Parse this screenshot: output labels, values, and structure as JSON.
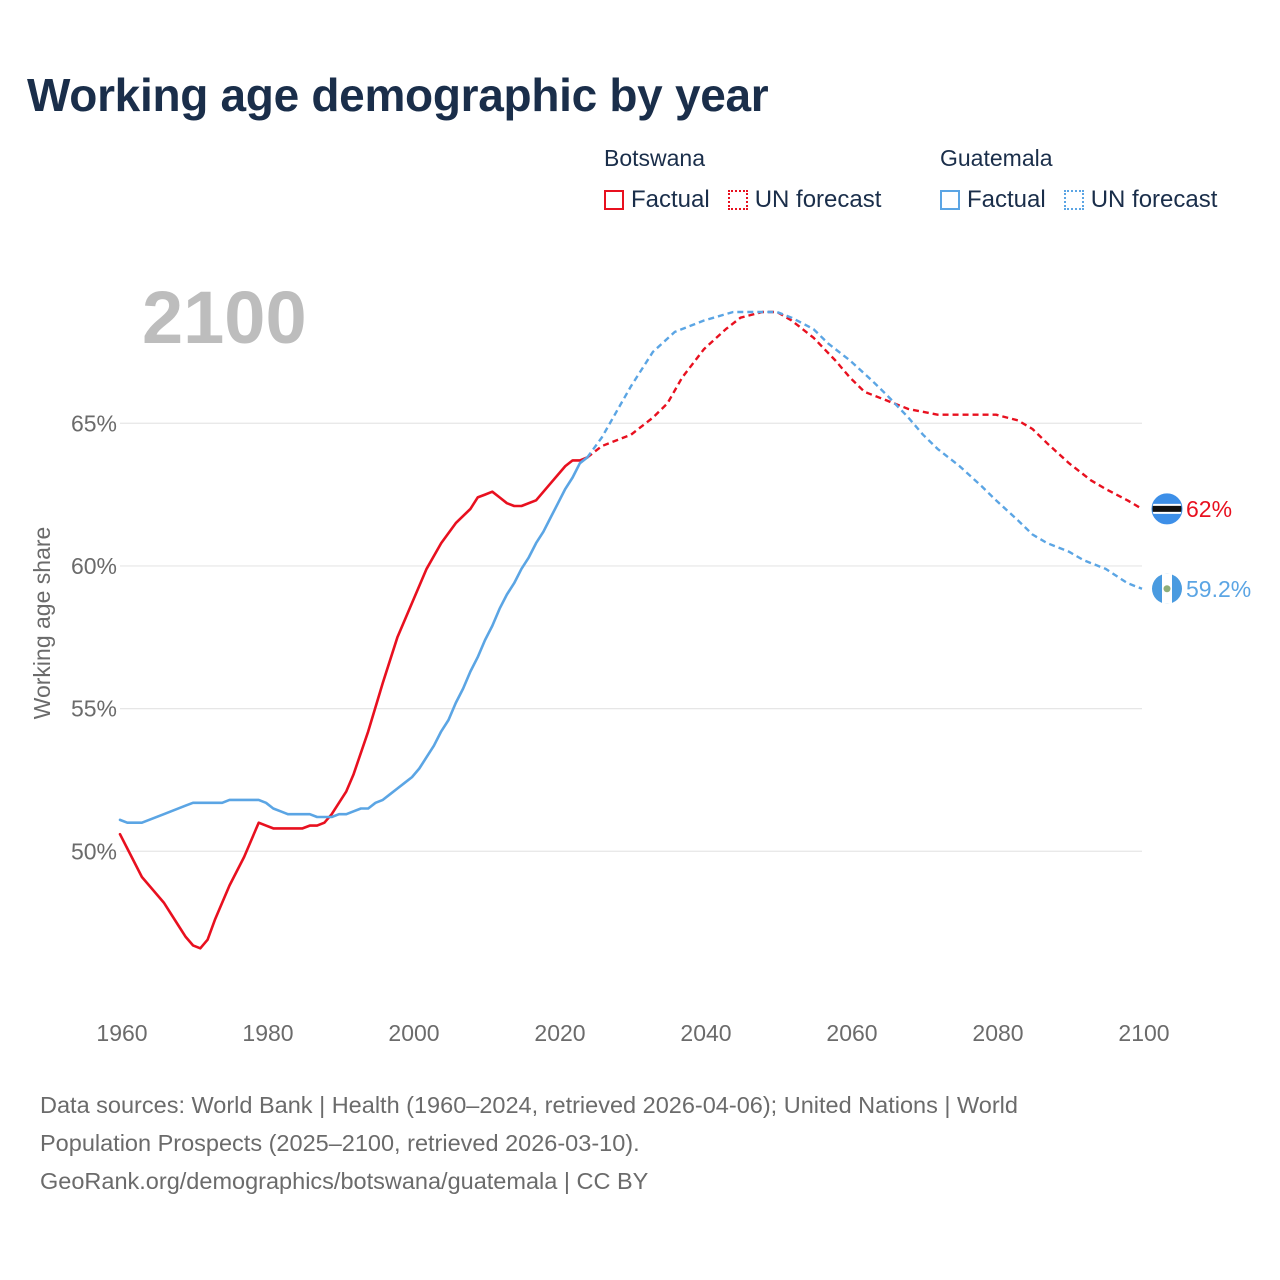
{
  "title": "Working age demographic by year",
  "legend": {
    "groups": [
      {
        "country": "Botswana",
        "factual_label": "Factual",
        "forecast_label": "UN forecast",
        "color": "#e8101f"
      },
      {
        "country": "Guatemala",
        "factual_label": "Factual",
        "forecast_label": "UN forecast",
        "color": "#5ba5e4"
      }
    ]
  },
  "footer": {
    "line1": "Data sources: World Bank | Health (1960–2024, retrieved 2026-04-06); United Nations | World",
    "line2": "Population Prospects (2025–2100, retrieved 2026-03-10).",
    "line3": "GeoRank.org/demographics/botswana/guatemala | CC BY"
  },
  "chart_data": {
    "type": "line",
    "year_label": "2100",
    "ylabel": "Working age share",
    "xlim": [
      1960,
      2100
    ],
    "ylim": [
      46.4,
      69.6
    ],
    "x_ticks": [
      1960,
      1980,
      2000,
      2020,
      2040,
      2060,
      2080,
      2100
    ],
    "y_ticks": [
      {
        "value": 50,
        "label": "50%"
      },
      {
        "value": 55,
        "label": "55%"
      },
      {
        "value": 60,
        "label": "60%"
      },
      {
        "value": 65,
        "label": "65%"
      }
    ],
    "grid": true,
    "series": [
      {
        "name": "Botswana",
        "color": "#e8101f",
        "end_label": "62%",
        "end_value": 62.0,
        "factual": {
          "x": [
            1960,
            1963,
            1966,
            1968,
            1969,
            1970,
            1971,
            1972,
            1973,
            1975,
            1977,
            1979,
            1980,
            1981,
            1983,
            1985,
            1986,
            1987,
            1988,
            1989,
            1990,
            1991,
            1992,
            1994,
            1996,
            1998,
            2000,
            2002,
            2004,
            2006,
            2008,
            2009,
            2010,
            2011,
            2012,
            2013,
            2014,
            2015,
            2017,
            2019,
            2021,
            2022,
            2023,
            2024
          ],
          "y": [
            50.6,
            49.1,
            48.2,
            47.4,
            47.0,
            46.7,
            46.6,
            46.9,
            47.6,
            48.8,
            49.8,
            51.0,
            50.9,
            50.8,
            50.8,
            50.8,
            50.9,
            50.9,
            51.0,
            51.3,
            51.7,
            52.1,
            52.7,
            54.2,
            55.9,
            57.5,
            58.7,
            59.9,
            60.8,
            61.5,
            62.0,
            62.4,
            62.5,
            62.6,
            62.4,
            62.2,
            62.1,
            62.1,
            62.3,
            62.9,
            63.5,
            63.7,
            63.7,
            63.8
          ]
        },
        "forecast": {
          "x": [
            2024,
            2026,
            2030,
            2033,
            2035,
            2037,
            2040,
            2043,
            2045,
            2048,
            2050,
            2052,
            2055,
            2058,
            2060,
            2062,
            2065,
            2068,
            2070,
            2072,
            2075,
            2078,
            2080,
            2083,
            2085,
            2087,
            2090,
            2093,
            2095,
            2098,
            2100
          ],
          "y": [
            63.8,
            64.2,
            64.6,
            65.2,
            65.7,
            66.6,
            67.6,
            68.3,
            68.7,
            68.9,
            68.9,
            68.6,
            68.0,
            67.2,
            66.6,
            66.1,
            65.8,
            65.5,
            65.4,
            65.3,
            65.3,
            65.3,
            65.3,
            65.1,
            64.8,
            64.3,
            63.6,
            63.0,
            62.7,
            62.3,
            62.0
          ]
        }
      },
      {
        "name": "Guatemala",
        "color": "#5ba5e4",
        "end_label": "59.2%",
        "end_value": 59.2,
        "factual": {
          "x": [
            1960,
            1961,
            1963,
            1966,
            1969,
            1970,
            1972,
            1974,
            1975,
            1977,
            1979,
            1980,
            1981,
            1982,
            1983,
            1984,
            1985,
            1986,
            1987,
            1988,
            1989,
            1990,
            1991,
            1992,
            1993,
            1994,
            1995,
            1996,
            1997,
            1998,
            1999,
            2000,
            2001,
            2002,
            2003,
            2004,
            2005,
            2006,
            2007,
            2008,
            2009,
            2010,
            2011,
            2012,
            2013,
            2014,
            2015,
            2016,
            2017,
            2018,
            2019,
            2020,
            2021,
            2022,
            2023,
            2024
          ],
          "y": [
            51.1,
            51.0,
            51.0,
            51.3,
            51.6,
            51.7,
            51.7,
            51.7,
            51.8,
            51.8,
            51.8,
            51.7,
            51.5,
            51.4,
            51.3,
            51.3,
            51.3,
            51.3,
            51.2,
            51.2,
            51.2,
            51.3,
            51.3,
            51.4,
            51.5,
            51.5,
            51.7,
            51.8,
            52.0,
            52.2,
            52.4,
            52.6,
            52.9,
            53.3,
            53.7,
            54.2,
            54.6,
            55.2,
            55.7,
            56.3,
            56.8,
            57.4,
            57.9,
            58.5,
            59.0,
            59.4,
            59.9,
            60.3,
            60.8,
            61.2,
            61.7,
            62.2,
            62.7,
            63.1,
            63.6,
            63.8
          ]
        },
        "forecast": {
          "x": [
            2024,
            2026,
            2028,
            2030,
            2033,
            2036,
            2040,
            2044,
            2046,
            2050,
            2052,
            2055,
            2057,
            2060,
            2063,
            2065,
            2068,
            2070,
            2072,
            2075,
            2078,
            2080,
            2083,
            2085,
            2087,
            2090,
            2092,
            2095,
            2098,
            2100
          ],
          "y": [
            63.8,
            64.5,
            65.4,
            66.3,
            67.5,
            68.2,
            68.6,
            68.9,
            68.9,
            68.9,
            68.7,
            68.3,
            67.8,
            67.2,
            66.5,
            66.0,
            65.2,
            64.6,
            64.1,
            63.5,
            62.8,
            62.3,
            61.6,
            61.1,
            60.8,
            60.5,
            60.2,
            59.9,
            59.4,
            59.2
          ]
        }
      }
    ]
  }
}
